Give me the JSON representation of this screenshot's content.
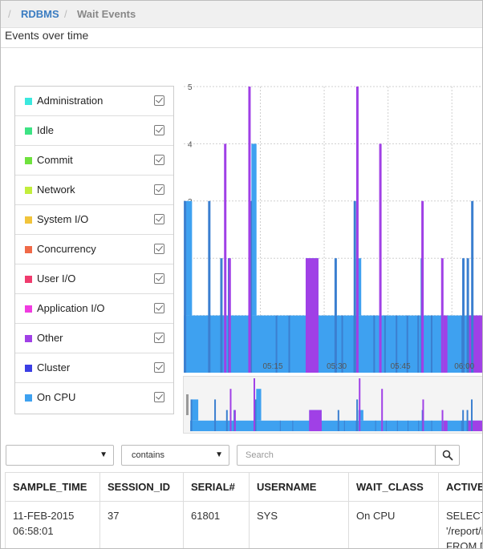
{
  "breadcrumb": {
    "sep": "/",
    "root": "RDBMS",
    "current": "Wait Events"
  },
  "section": {
    "title": "Events over time"
  },
  "legend": {
    "items": [
      {
        "label": "Administration",
        "color": "#3be8de",
        "checked": true
      },
      {
        "label": "Idle",
        "color": "#3de384",
        "checked": true
      },
      {
        "label": "Commit",
        "color": "#6fe23e",
        "checked": true
      },
      {
        "label": "Network",
        "color": "#c2ee3c",
        "checked": true
      },
      {
        "label": "System I/O",
        "color": "#f1c43b",
        "checked": true
      },
      {
        "label": "Concurrency",
        "color": "#f06a48",
        "checked": true
      },
      {
        "label": "User I/O",
        "color": "#f03b6e",
        "checked": true
      },
      {
        "label": "Application I/O",
        "color": "#f03be0",
        "checked": true
      },
      {
        "label": "Other",
        "color": "#a040e6",
        "checked": true
      },
      {
        "label": "Cluster",
        "color": "#3b3ee4",
        "checked": true
      },
      {
        "label": "On CPU",
        "color": "#3ea1f0",
        "checked": true
      }
    ]
  },
  "chart_data": {
    "type": "area",
    "stacked": true,
    "title": "Events over time",
    "xlabel": "",
    "ylabel": "",
    "x_range_minutes": [
      0,
      47
    ],
    "ylim": [
      0,
      5
    ],
    "yticks": [
      1,
      2,
      3,
      4,
      5
    ],
    "xticks": [
      {
        "label": "05:15",
        "t": 12
      },
      {
        "label": "05:30",
        "t": 22
      },
      {
        "label": "05:45",
        "t": 32
      },
      {
        "label": "06:00",
        "t": 42
      }
    ],
    "grid": true,
    "baseline": 1,
    "series": [
      {
        "name": "On CPU",
        "color": "#3ea1f0",
        "spans": [
          {
            "from": 0.3,
            "to": 1.3,
            "value": 2
          },
          {
            "from": 10.6,
            "to": 11.4,
            "value": 3
          },
          {
            "from": 19.1,
            "to": 21.1,
            "value": 1
          },
          {
            "from": 27,
            "to": 27.8,
            "value": 1
          }
        ],
        "spikes": [
          {
            "t": 0.2,
            "value": 3
          },
          {
            "t": 4.0,
            "value": 3
          },
          {
            "t": 5.9,
            "value": 2
          },
          {
            "t": 7.1,
            "value": 2
          },
          {
            "t": 10.5,
            "value": 3
          },
          {
            "t": 23.8,
            "value": 2
          },
          {
            "t": 26.8,
            "value": 3
          },
          {
            "t": 37.3,
            "value": 2
          },
          {
            "t": 43.8,
            "value": 2
          },
          {
            "t": 44.5,
            "value": 2
          },
          {
            "t": 45.2,
            "value": 3
          }
        ]
      },
      {
        "name": "Other",
        "color": "#a040e6",
        "spans": [
          {
            "from": 19.1,
            "to": 21.1,
            "value": 1
          },
          {
            "from": 40.7,
            "to": 41.3,
            "value": 0
          },
          {
            "from": 44.4,
            "to": 47,
            "value": 0
          }
        ],
        "spikes": [
          {
            "t": 6.5,
            "value": 3
          },
          {
            "t": 7.2,
            "value": 1
          },
          {
            "t": 10.3,
            "value": 4
          },
          {
            "t": 27.2,
            "value": 4
          },
          {
            "t": 30.8,
            "value": 3
          },
          {
            "t": 37.4,
            "value": 2
          },
          {
            "t": 40.5,
            "value": 1
          }
        ]
      }
    ]
  },
  "filter": {
    "column_value": "",
    "operator": "contains",
    "search_placeholder": "Search"
  },
  "table": {
    "columns": [
      "SAMPLE_TIME",
      "SESSION_ID",
      "SERIAL#",
      "USERNAME",
      "WAIT_CLASS",
      "ACTIVE_SQL"
    ],
    "visible_headers": [
      "SAMPLE_TIME",
      "SESSION_ID",
      "SERIAL#",
      "USERNAME",
      "WAIT_CLASS",
      "ACTIVE"
    ],
    "rows": [
      {
        "sample_time_line1": "11-FEB-2015",
        "sample_time_line2": "06:58:01",
        "session_id": "37",
        "serial": "61801",
        "username": "SYS",
        "wait_class": "On CPU",
        "sql_line1": "SELECT",
        "sql_line2": "'/report/r",
        "sql_line3": "FROM D"
      }
    ]
  }
}
